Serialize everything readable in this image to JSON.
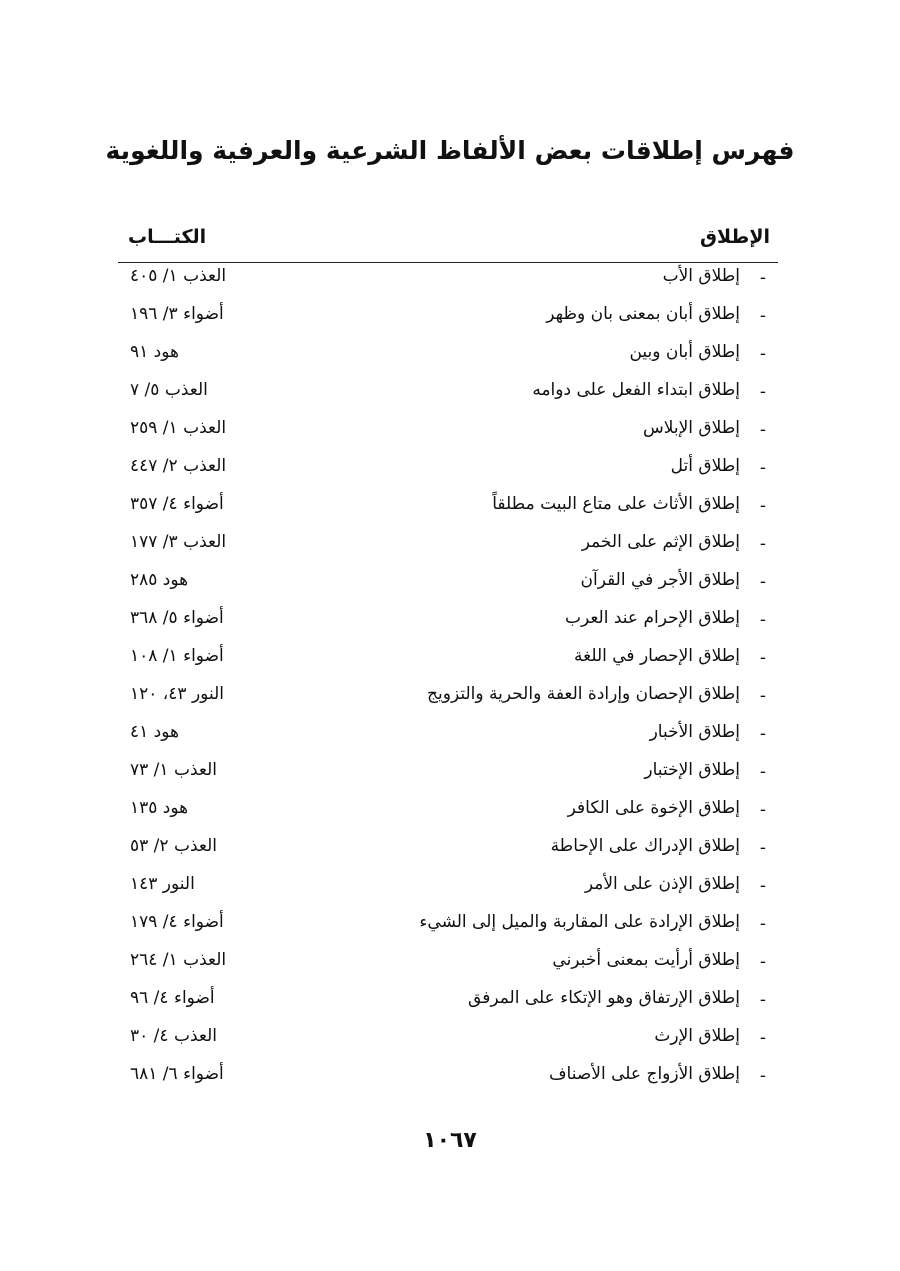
{
  "title": "فهرس إطلاقات بعض الألفاظ الشرعية والعرفية واللغوية",
  "headers": {
    "term": "الإطلاق",
    "book": "الكتـــاب"
  },
  "entries": [
    {
      "term": "إطلاق الأب",
      "ref": "العذب ١/ ٤٠٥"
    },
    {
      "term": "إطلاق أبان بمعنى بان وظهر",
      "ref": "أضواء ٣/ ١٩٦"
    },
    {
      "term": "إطلاق أبان وبين",
      "ref": "هود ٩١"
    },
    {
      "term": "إطلاق ابتداء الفعل على دوامه",
      "ref": "العذب ٥/ ٧"
    },
    {
      "term": "إطلاق الإبلاس",
      "ref": "العذب ١/ ٢٥٩"
    },
    {
      "term": "إطلاق أتل",
      "ref": "العذب ٢/ ٤٤٧"
    },
    {
      "term": "إطلاق الأثاث على متاع البيت مطلقاً",
      "ref": "أضواء ٤/ ٣٥٧"
    },
    {
      "term": "إطلاق الإثم على الخمر",
      "ref": "العذب ٣/ ١٧٧"
    },
    {
      "term": "إطلاق الأجر في القرآن",
      "ref": "هود ٢٨٥"
    },
    {
      "term": "إطلاق الإحرام عند العرب",
      "ref": "أضواء ٥/ ٣٦٨"
    },
    {
      "term": "إطلاق الإحصار في اللغة",
      "ref": "أضواء ١/ ١٠٨"
    },
    {
      "term": "إطلاق الإحصان وإرادة العفة والحرية والتزويج",
      "ref": "النور ٤٣، ١٢٠"
    },
    {
      "term": "إطلاق الأخبار",
      "ref": "هود ٤١"
    },
    {
      "term": "إطلاق الإختبار",
      "ref": "العذب ١/ ٧٣"
    },
    {
      "term": "إطلاق الإخوة على الكافر",
      "ref": "هود ١٣٥"
    },
    {
      "term": "إطلاق الإدراك على الإحاطة",
      "ref": "العذب ٢/ ٥٣"
    },
    {
      "term": "إطلاق الإذن على الأمر",
      "ref": "النور ١٤٣"
    },
    {
      "term": "إطلاق الإرادة على المقاربة والميل إلى الشيء",
      "ref": "أضواء ٤/ ١٧٩"
    },
    {
      "term": "إطلاق أرأيت بمعنى أخبرني",
      "ref": "العذب ١/ ٢٦٤"
    },
    {
      "term": "إطلاق الإرتفاق وهو الإتكاء على المرفق",
      "ref": "أضواء ٤/ ٩٦"
    },
    {
      "term": "إطلاق الإرث",
      "ref": "العذب ٤/ ٣٠"
    },
    {
      "term": "إطلاق الأزواج على الأصناف",
      "ref": "أضواء ٦/ ٦٨١"
    }
  ],
  "bullet": "-",
  "page_number": "١٠٦٧"
}
